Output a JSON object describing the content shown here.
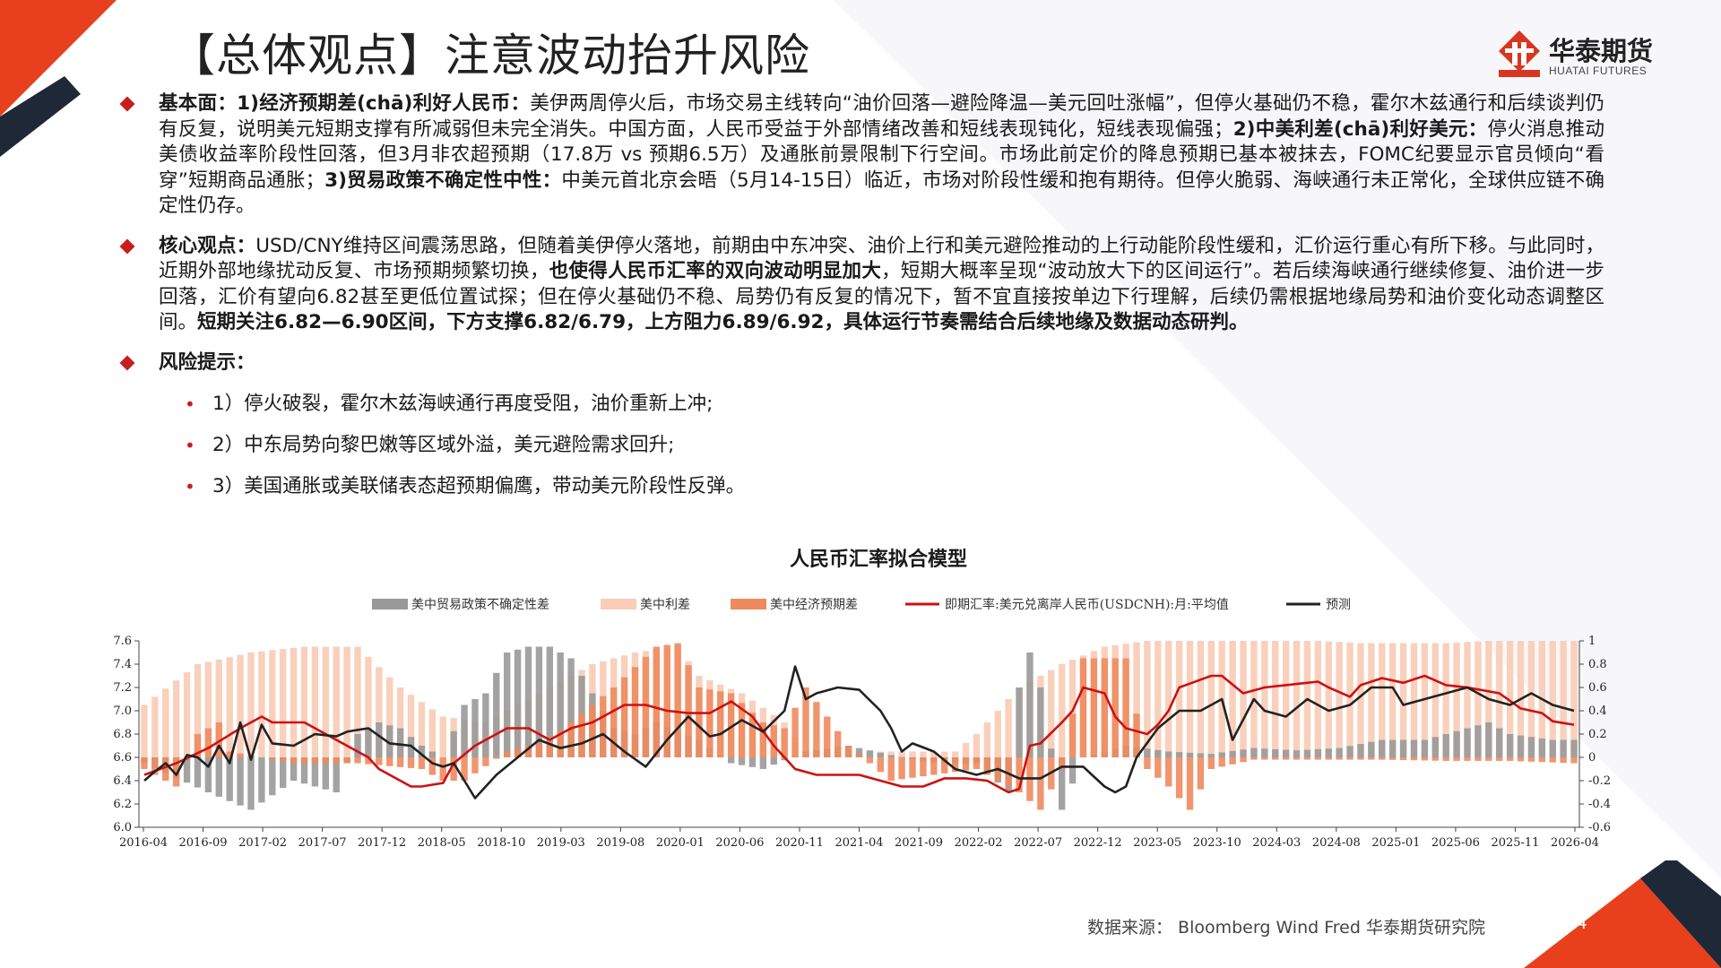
{
  "header": {
    "title": "【总体观点】注意波动抬升风险",
    "logo_name": "华泰期货",
    "logo_sub": "HUATAI FUTURES"
  },
  "sections": {
    "fundamentals": {
      "label": "基本面：",
      "p1_bold": "1)经济预期差(chā)利好人民币：",
      "p1_text": "美伊两周停火后，市场交易主线转向“油价回落—避险降温—美元回吐涨幅”，但停火基础仍不稳，霍尔木兹通行和后续谈判仍有反复，说明美元短期支撑有所减弱但未完全消失。中国方面，人民币受益于外部情绪改善和短线表现钝化，短线表现偏强；",
      "p2_bold": "2)中美利差(chā)利好美元：",
      "p2_text": "停火消息推动美债收益率阶段性回落，但3月非农超预期（17.8万 vs 预期6.5万）及通胀前景限制下行空间。市场此前定价的降息预期已基本被抹去，FOMC纪要显示官员倾向“看穿”短期商品通胀；",
      "p3_bold": "3)贸易政策不确定性中性：",
      "p3_text": "中美元首北京会晤（5月14-15日）临近，市场对阶段性缓和抱有期待。但停火脆弱、海峡通行未正常化，全球供应链不确定性仍存。"
    },
    "core": {
      "label": "核心观点：",
      "text1": "USD/CNY维持区间震荡思路，但随着美伊停火落地，前期由中东冲突、油价上行和美元避险推动的上行动能阶段性缓和，汇价运行重心有所下移。与此同时，近期外部地缘扰动反复、市场预期频繁切换，",
      "bold1": "也使得人民币汇率的双向波动明显加大",
      "text2": "，短期大概率呈现“波动放大下的区间运行”。若后续海峡通行继续修复、油价进一步回落，汇价有望向6.82甚至更低位置试探；但在停火基础仍不稳、局势仍有反复的情况下，暂不宜直接按单边下行理解，后续仍需根据地缘局势和油价变化动态调整区间。",
      "bold2": "短期关注6.82—6.90区间，下方支撑6.82/6.79，上方阻力6.89/6.92，具体运行节奏需结合后续地缘及数据动态研判。"
    },
    "risk": {
      "label": "风险提示：",
      "items": [
        "1）停火破裂，霍尔木兹海峡通行再度受阻，油价重新上冲;",
        "2）中东局势向黎巴嫩等区域外溢，美元避险需求回升;",
        "3）美国通胀或美联储表态超预期偏鹰，带动美元阶段性反弹。"
      ]
    }
  },
  "chart_title": "人民币汇率拟合模型",
  "chart_data": {
    "type": "bar",
    "title": "人民币汇率拟合模型",
    "legend_position": "top",
    "x_tick_labels": [
      "2016-04",
      "2016-09",
      "2017-02",
      "2017-07",
      "2017-12",
      "2018-05",
      "2018-10",
      "2019-03",
      "2019-08",
      "2020-01",
      "2020-06",
      "2020-11",
      "2021-04",
      "2021-09",
      "2022-02",
      "2022-07",
      "2022-12",
      "2023-05",
      "2023-10",
      "2024-03",
      "2024-08",
      "2025-01",
      "2025-06",
      "2025-11",
      "2026-04"
    ],
    "y_left": {
      "range": [
        6.0,
        7.6
      ],
      "ticks": [
        "6.0",
        "6.2",
        "6.4",
        "6.6",
        "6.8",
        "7.0",
        "7.2",
        "7.4",
        "7.6"
      ]
    },
    "y_right": {
      "range": [
        -0.6,
        1.0
      ],
      "ticks": [
        "-0.6",
        "-0.4",
        "-0.2",
        "0",
        "0.2",
        "0.4",
        "0.6",
        "0.8",
        "1"
      ]
    },
    "colors": {
      "trade": "#999999",
      "spread": "#f9cdb7",
      "econ": "#ee8a5e",
      "spot": "#cc1111",
      "pred": "#222222"
    },
    "series_names": {
      "trade": "美中贸易政策不确定性差",
      "spread": "美中利差",
      "econ": "美中经济预期差",
      "spot": "即期汇率:美元兑离岸人民币(USDCNH):月:平均值",
      "pred": "预测"
    },
    "keypoints": {
      "spot": [
        [
          0,
          6.45
        ],
        [
          3,
          6.55
        ],
        [
          6,
          6.68
        ],
        [
          9,
          6.85
        ],
        [
          11,
          6.95
        ],
        [
          12,
          6.9
        ],
        [
          15,
          6.9
        ],
        [
          18,
          6.75
        ],
        [
          21,
          6.6
        ],
        [
          22,
          6.5
        ],
        [
          24,
          6.4
        ],
        [
          25,
          6.35
        ],
        [
          26,
          6.35
        ],
        [
          28,
          6.38
        ],
        [
          29,
          6.55
        ],
        [
          31,
          6.7
        ],
        [
          34,
          6.85
        ],
        [
          36,
          6.85
        ],
        [
          38,
          6.75
        ],
        [
          40,
          6.85
        ],
        [
          42,
          6.9
        ],
        [
          45,
          7.05
        ],
        [
          47,
          7.05
        ],
        [
          49,
          7.0
        ],
        [
          51,
          6.98
        ],
        [
          53,
          6.98
        ],
        [
          55,
          7.08
        ],
        [
          57,
          6.95
        ],
        [
          59,
          6.7
        ],
        [
          61,
          6.5
        ],
        [
          63,
          6.45
        ],
        [
          65,
          6.45
        ],
        [
          67,
          6.45
        ],
        [
          69,
          6.4
        ],
        [
          71,
          6.35
        ],
        [
          73,
          6.35
        ],
        [
          75,
          6.42
        ],
        [
          77,
          6.42
        ],
        [
          79,
          6.4
        ],
        [
          80,
          6.35
        ],
        [
          81,
          6.3
        ],
        [
          82,
          6.33
        ],
        [
          83,
          6.7
        ],
        [
          84,
          6.72
        ],
        [
          86,
          6.9
        ],
        [
          87,
          7.0
        ],
        [
          88,
          7.2
        ],
        [
          90,
          7.15
        ],
        [
          91,
          6.95
        ],
        [
          92,
          6.85
        ],
        [
          94,
          6.8
        ],
        [
          95,
          6.88
        ],
        [
          96,
          7.0
        ],
        [
          97,
          7.2
        ],
        [
          100,
          7.3
        ],
        [
          101,
          7.3
        ],
        [
          103,
          7.15
        ],
        [
          105,
          7.2
        ],
        [
          107,
          7.22
        ],
        [
          110,
          7.25
        ],
        [
          111,
          7.2
        ],
        [
          113,
          7.12
        ],
        [
          114,
          7.22
        ],
        [
          116,
          7.28
        ],
        [
          118,
          7.24
        ],
        [
          120,
          7.3
        ],
        [
          122,
          7.22
        ],
        [
          124,
          7.2
        ],
        [
          127,
          7.15
        ],
        [
          129,
          7.02
        ],
        [
          131,
          6.98
        ],
        [
          132,
          6.91
        ],
        [
          134,
          6.88
        ]
      ],
      "pred": [
        [
          0,
          6.4
        ],
        [
          1,
          6.48
        ],
        [
          2,
          6.55
        ],
        [
          3,
          6.45
        ],
        [
          4,
          6.62
        ],
        [
          5,
          6.6
        ],
        [
          6,
          6.52
        ],
        [
          7,
          6.7
        ],
        [
          8,
          6.55
        ],
        [
          9,
          6.9
        ],
        [
          10,
          6.58
        ],
        [
          11,
          6.88
        ],
        [
          12,
          6.72
        ],
        [
          14,
          6.7
        ],
        [
          16,
          6.8
        ],
        [
          18,
          6.78
        ],
        [
          19,
          6.82
        ],
        [
          21,
          6.85
        ],
        [
          23,
          6.72
        ],
        [
          25,
          6.7
        ],
        [
          27,
          6.55
        ],
        [
          28,
          6.52
        ],
        [
          29,
          6.55
        ],
        [
          30,
          6.4
        ],
        [
          31,
          6.25
        ],
        [
          33,
          6.45
        ],
        [
          35,
          6.6
        ],
        [
          37,
          6.75
        ],
        [
          39,
          6.68
        ],
        [
          41,
          6.72
        ],
        [
          43,
          6.8
        ],
        [
          45,
          6.65
        ],
        [
          47,
          6.52
        ],
        [
          49,
          6.75
        ],
        [
          51,
          6.95
        ],
        [
          53,
          6.78
        ],
        [
          54,
          6.8
        ],
        [
          56,
          6.92
        ],
        [
          58,
          6.82
        ],
        [
          60,
          7.0
        ],
        [
          61,
          7.38
        ],
        [
          62,
          7.1
        ],
        [
          63,
          7.15
        ],
        [
          65,
          7.2
        ],
        [
          67,
          7.18
        ],
        [
          69,
          7.0
        ],
        [
          70,
          6.85
        ],
        [
          71,
          6.65
        ],
        [
          72,
          6.72
        ],
        [
          74,
          6.65
        ],
        [
          76,
          6.5
        ],
        [
          78,
          6.45
        ],
        [
          80,
          6.5
        ],
        [
          82,
          6.42
        ],
        [
          84,
          6.42
        ],
        [
          86,
          6.52
        ],
        [
          88,
          6.52
        ],
        [
          90,
          6.35
        ],
        [
          91,
          6.3
        ],
        [
          92,
          6.35
        ],
        [
          93,
          6.6
        ],
        [
          95,
          6.85
        ],
        [
          97,
          7.0
        ],
        [
          99,
          7.0
        ],
        [
          101,
          7.1
        ],
        [
          102,
          6.75
        ],
        [
          104,
          7.1
        ],
        [
          105,
          7.0
        ],
        [
          107,
          6.95
        ],
        [
          109,
          7.1
        ],
        [
          111,
          7.0
        ],
        [
          113,
          7.05
        ],
        [
          115,
          7.2
        ],
        [
          117,
          7.2
        ],
        [
          118,
          7.05
        ],
        [
          120,
          7.1
        ],
        [
          122,
          7.15
        ],
        [
          124,
          7.2
        ],
        [
          126,
          7.1
        ],
        [
          128,
          7.05
        ],
        [
          130,
          7.15
        ],
        [
          132,
          7.05
        ],
        [
          134,
          7.0
        ]
      ],
      "spread": [
        [
          0,
          0.45
        ],
        [
          5,
          0.8
        ],
        [
          10,
          0.9
        ],
        [
          15,
          0.95
        ],
        [
          20,
          0.95
        ],
        [
          24,
          0.6
        ],
        [
          28,
          0.35
        ],
        [
          32,
          0.3
        ],
        [
          36,
          0.5
        ],
        [
          38,
          0.6
        ],
        [
          42,
          0.8
        ],
        [
          46,
          0.9
        ],
        [
          50,
          0.95
        ],
        [
          52,
          0.7
        ],
        [
          56,
          0.55
        ],
        [
          60,
          0.3
        ],
        [
          62,
          0.05
        ],
        [
          64,
          0.05
        ],
        [
          68,
          0.05
        ],
        [
          72,
          0.05
        ],
        [
          76,
          0.05
        ],
        [
          78,
          0.2
        ],
        [
          82,
          0.6
        ],
        [
          86,
          0.8
        ],
        [
          90,
          0.95
        ],
        [
          94,
          1.0
        ],
        [
          98,
          1.0
        ],
        [
          102,
          1.0
        ],
        [
          106,
          1.0
        ],
        [
          110,
          1.0
        ],
        [
          114,
          0.98
        ],
        [
          118,
          0.98
        ],
        [
          122,
          0.98
        ],
        [
          126,
          1.0
        ],
        [
          130,
          1.0
        ],
        [
          134,
          1.0
        ]
      ],
      "trade": [
        [
          0,
          -0.05
        ],
        [
          6,
          -0.3
        ],
        [
          10,
          -0.45
        ],
        [
          14,
          -0.2
        ],
        [
          18,
          -0.3
        ],
        [
          20,
          0.2
        ],
        [
          22,
          0.3
        ],
        [
          24,
          0.25
        ],
        [
          26,
          0.1
        ],
        [
          28,
          0.0
        ],
        [
          30,
          0.45
        ],
        [
          32,
          0.55
        ],
        [
          34,
          0.9
        ],
        [
          36,
          0.95
        ],
        [
          38,
          0.95
        ],
        [
          40,
          0.85
        ],
        [
          44,
          0.25
        ],
        [
          46,
          0.2
        ],
        [
          48,
          0.3
        ],
        [
          52,
          0.15
        ],
        [
          55,
          -0.05
        ],
        [
          58,
          -0.1
        ],
        [
          62,
          0.05
        ],
        [
          66,
          0.1
        ],
        [
          70,
          0.02
        ],
        [
          74,
          -0.05
        ],
        [
          78,
          -0.05
        ],
        [
          81,
          -0.3
        ],
        [
          82,
          0.6
        ],
        [
          83,
          0.9
        ],
        [
          84,
          0.6
        ],
        [
          86,
          -0.45
        ],
        [
          88,
          0.0
        ],
        [
          92,
          0.1
        ],
        [
          96,
          0.05
        ],
        [
          100,
          0.03
        ],
        [
          104,
          0.08
        ],
        [
          108,
          0.06
        ],
        [
          112,
          0.08
        ],
        [
          116,
          0.15
        ],
        [
          120,
          0.15
        ],
        [
          124,
          0.25
        ],
        [
          126,
          0.3
        ],
        [
          128,
          0.2
        ],
        [
          132,
          0.15
        ],
        [
          134,
          0.15
        ]
      ],
      "econ": [
        [
          0,
          -0.1
        ],
        [
          3,
          -0.25
        ],
        [
          5,
          0.2
        ],
        [
          7,
          0.3
        ],
        [
          8,
          0.05
        ],
        [
          14,
          -0.05
        ],
        [
          20,
          -0.05
        ],
        [
          26,
          -0.1
        ],
        [
          28,
          -0.2
        ],
        [
          30,
          -0.2
        ],
        [
          34,
          0.05
        ],
        [
          38,
          0.15
        ],
        [
          44,
          0.6
        ],
        [
          48,
          0.95
        ],
        [
          50,
          0.98
        ],
        [
          52,
          0.6
        ],
        [
          55,
          0.55
        ],
        [
          58,
          0.3
        ],
        [
          60,
          0.25
        ],
        [
          62,
          0.6
        ],
        [
          66,
          0.1
        ],
        [
          70,
          -0.2
        ],
        [
          74,
          -0.15
        ],
        [
          78,
          -0.1
        ],
        [
          82,
          -0.3
        ],
        [
          84,
          -0.45
        ],
        [
          86,
          -0.1
        ],
        [
          88,
          0.85
        ],
        [
          92,
          0.85
        ],
        [
          94,
          -0.1
        ],
        [
          96,
          -0.25
        ],
        [
          98,
          -0.45
        ],
        [
          100,
          -0.1
        ],
        [
          104,
          -0.02
        ],
        [
          110,
          -0.02
        ],
        [
          116,
          -0.02
        ],
        [
          122,
          -0.03
        ],
        [
          128,
          -0.03
        ],
        [
          134,
          -0.05
        ]
      ]
    }
  },
  "footer": {
    "source": "数据来源： Bloomberg Wind Fred 华泰期货研究院",
    "page_number": "14"
  }
}
